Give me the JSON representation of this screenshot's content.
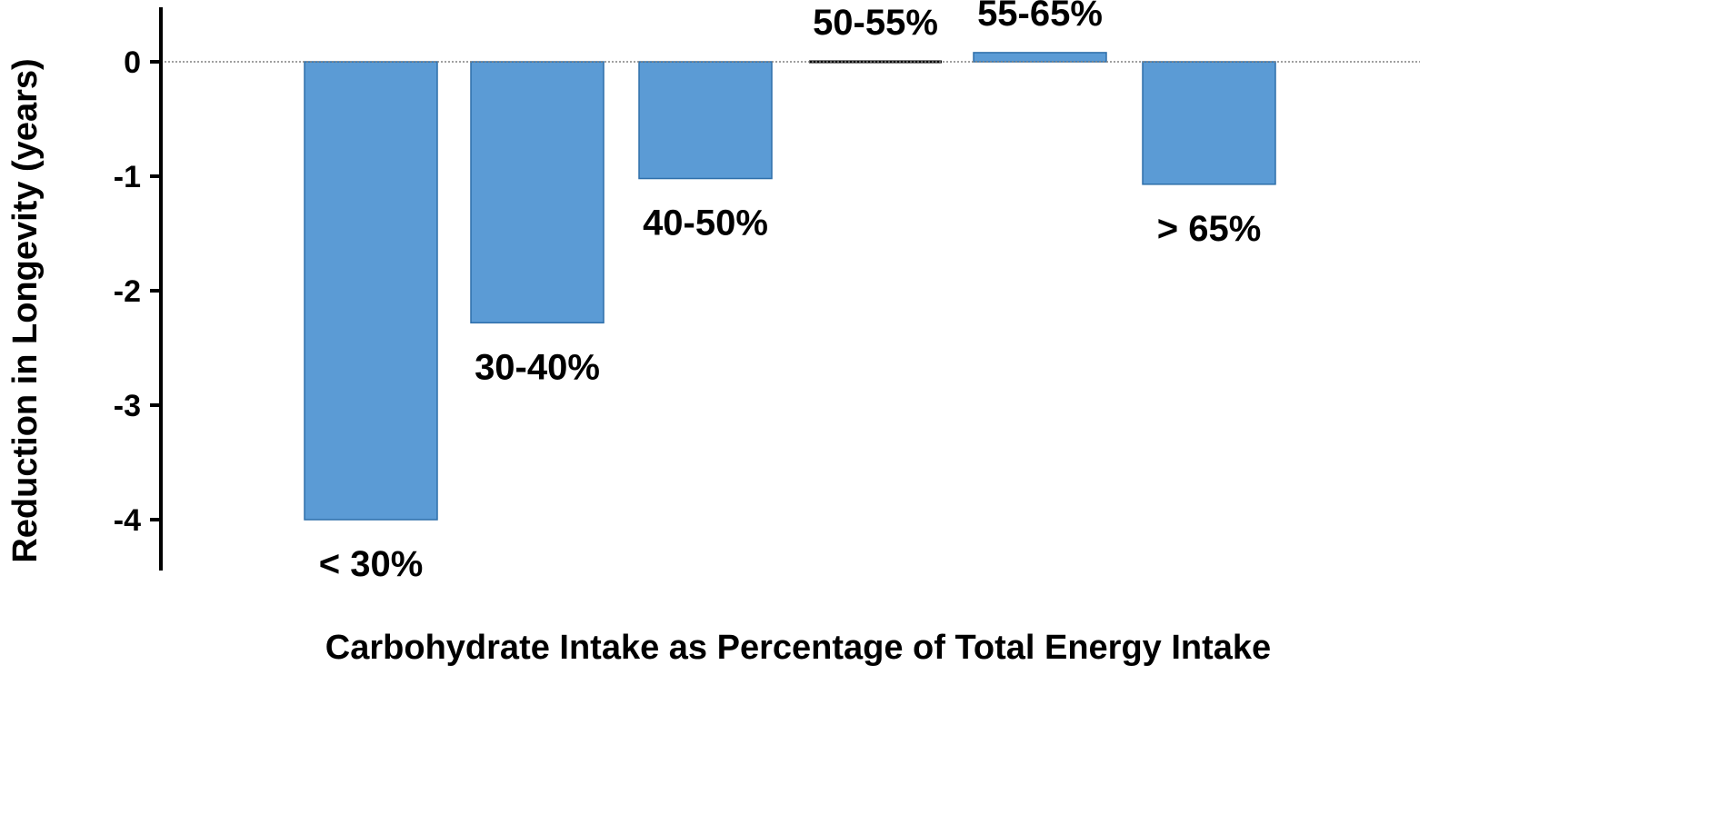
{
  "chart_data": {
    "type": "bar",
    "categories": [
      "< 30%",
      "30-40%",
      "40-50%",
      "50-55%",
      "55-65%",
      "> 65%"
    ],
    "values": [
      -4.0,
      -2.28,
      -1.02,
      0.0,
      0.08,
      -1.07
    ],
    "title": "",
    "xlabel": "Carbohydrate Intake as Percentage of Total Energy Intake",
    "ylabel": "Reduction in Longevity (years)",
    "ylim": [
      -4.45,
      0.5
    ],
    "yticks": [
      0,
      -1,
      -2,
      -3,
      -4
    ],
    "ytick_labels": [
      "0",
      "-1",
      "-2",
      "-3",
      "-4"
    ],
    "grid": false,
    "legend": "none",
    "bar_color": "#5b9bd5",
    "bar_edge_color": "#2e6faa",
    "zero_line_color": "#808080"
  }
}
